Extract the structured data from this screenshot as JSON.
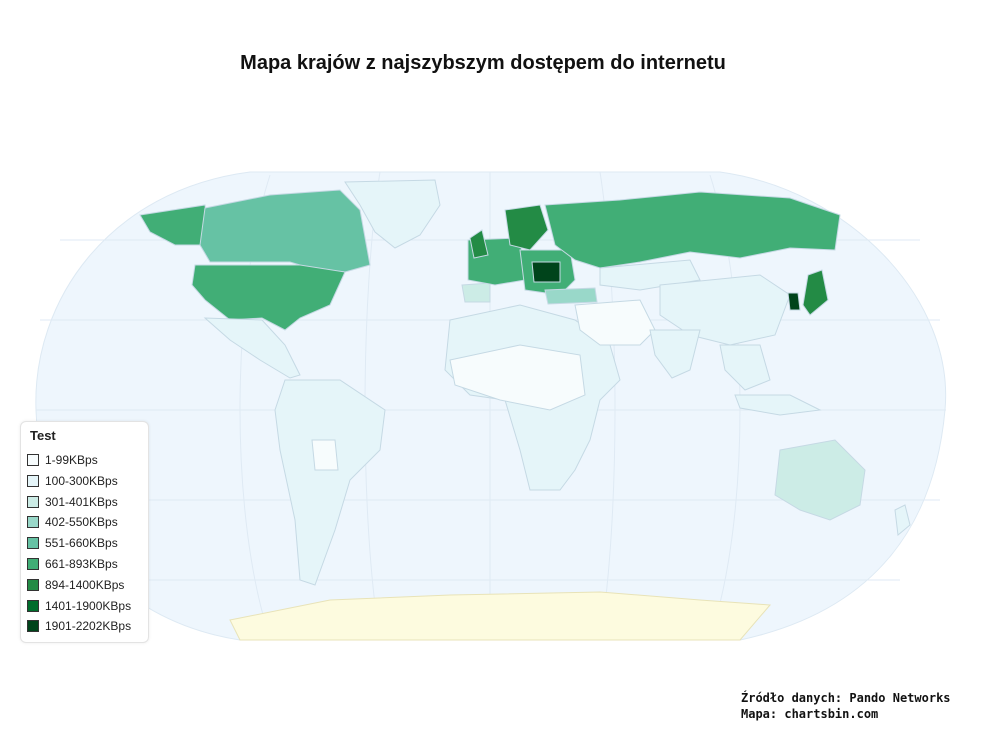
{
  "title": "Mapa krajów z najszybszym dostępem do internetu",
  "legend": {
    "title": "Test",
    "items": [
      {
        "label": "1-99KBps",
        "color": "#f7fcfd"
      },
      {
        "label": "100-300KBps",
        "color": "#e5f5f9"
      },
      {
        "label": "301-401KBps",
        "color": "#ccece6"
      },
      {
        "label": "402-550KBps",
        "color": "#99d8c9"
      },
      {
        "label": "551-660KBps",
        "color": "#66c2a4"
      },
      {
        "label": "661-893KBps",
        "color": "#41ae76"
      },
      {
        "label": "894-1400KBps",
        "color": "#238b45"
      },
      {
        "label": "1401-1900KBps",
        "color": "#006d2c"
      },
      {
        "label": "1901-2202KBps",
        "color": "#00441b"
      }
    ]
  },
  "source": {
    "line1": "Źródło danych: Pando Networks",
    "line2": "Mapa: chartsbin.com"
  },
  "colors": {
    "ocean": "#eef6fd",
    "no_data": "#fdfbdf",
    "border": "#c5d9e4"
  }
}
